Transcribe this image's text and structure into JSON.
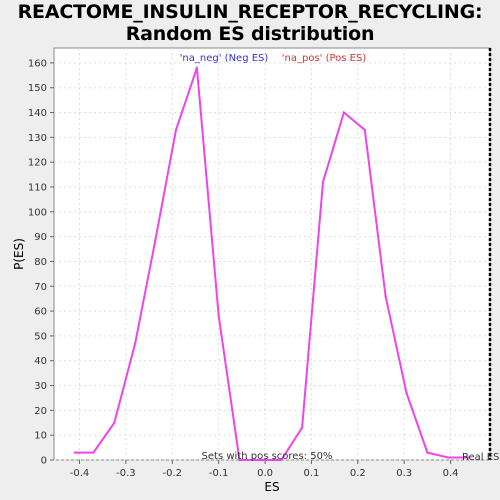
{
  "chart_data": {
    "type": "line",
    "title": "REACTOME_INSULIN_RECEPTOR_RECYCLING: Random ES distribution",
    "xlabel": "ES",
    "ylabel": "P(ES)",
    "xlim": [
      -0.455,
      0.485
    ],
    "ylim": [
      0,
      166
    ],
    "xticks": [
      -0.4,
      -0.3,
      -0.2,
      -0.1,
      0.0,
      0.1,
      0.2,
      0.3,
      0.4
    ],
    "xtick_labels": [
      "-0.4",
      "-0.3",
      "-0.2",
      "-0.1",
      "0.0",
      "0.1",
      "0.2",
      "0.3",
      "0.4"
    ],
    "yticks": [
      0,
      10,
      20,
      30,
      40,
      50,
      60,
      70,
      80,
      90,
      100,
      110,
      120,
      130,
      140,
      150,
      160
    ],
    "ytick_labels": [
      "0",
      "10",
      "20",
      "30",
      "40",
      "50",
      "60",
      "70",
      "80",
      "90",
      "100",
      "110",
      "120",
      "130",
      "140",
      "150",
      "160"
    ],
    "grid": true,
    "line_color": "#ee44ee",
    "series": [
      {
        "x": [
          -0.41,
          -0.37,
          -0.325,
          -0.28,
          -0.237,
          -0.192,
          -0.147,
          -0.1,
          -0.055,
          -0.01,
          0.035,
          0.08,
          0.125,
          0.17,
          0.215,
          0.26,
          0.305,
          0.35,
          0.395,
          0.44
        ],
        "y": [
          3,
          3,
          15,
          47,
          88,
          133,
          158,
          58,
          0,
          0,
          0,
          13,
          112,
          140,
          133,
          66,
          27,
          3,
          1,
          1
        ]
      }
    ],
    "legend": [
      {
        "label": "'na_neg' (Neg ES)",
        "color": "#3333cc"
      },
      {
        "label": "'na_pos' (Pos ES)",
        "color": "#cc3333"
      }
    ],
    "annotations": {
      "sets_text": "Sets with pos scores: 50%",
      "real_es_text": "Real ES",
      "real_es_value": 0.485
    }
  }
}
